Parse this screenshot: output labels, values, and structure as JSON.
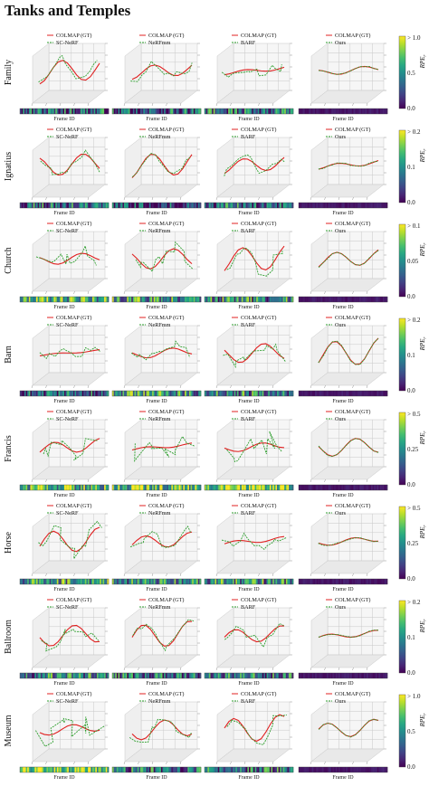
{
  "title": "Tanks and Temples",
  "legend_gt": "COLMAP (GT)",
  "xlabel": "Frame ID",
  "cbar_label": "RPE",
  "cbar_label_sub": "r",
  "methods": [
    "SC-NeRF",
    "NeRFmm",
    "BARF",
    "Ours"
  ],
  "colors": {
    "gt": "#e02020",
    "est": "#2e9e2e",
    "cmap_low": "#440154",
    "cmap_mid": "#21918c",
    "cmap_high": "#fde725"
  },
  "rows": [
    {
      "scene": "Family",
      "cbar_max": "> 1.0",
      "cbar_mid": "0.5",
      "cbar_min": "0.0",
      "rpe": [
        0.35,
        0.3,
        0.4,
        0.05
      ]
    },
    {
      "scene": "Ignatius",
      "cbar_max": "> 0.2",
      "cbar_mid": "0.1",
      "cbar_min": "0.0",
      "rpe": [
        0.35,
        0.2,
        0.35,
        0.05
      ]
    },
    {
      "scene": "Church",
      "cbar_max": "> 0.1",
      "cbar_mid": "0.05",
      "cbar_min": "0.0",
      "rpe": [
        0.6,
        0.55,
        0.45,
        0.05
      ]
    },
    {
      "scene": "Barn",
      "cbar_max": "> 0.2",
      "cbar_mid": "0.1",
      "cbar_min": "0.0",
      "rpe": [
        0.3,
        0.5,
        0.45,
        0.05
      ]
    },
    {
      "scene": "Francis",
      "cbar_max": "> 0.5",
      "cbar_mid": "0.25",
      "cbar_min": "0.0",
      "rpe": [
        0.65,
        0.7,
        0.8,
        0.05
      ]
    },
    {
      "scene": "Horse",
      "cbar_max": "> 0.5",
      "cbar_mid": "0.25",
      "cbar_min": "0.0",
      "rpe": [
        0.55,
        0.45,
        0.5,
        0.05
      ]
    },
    {
      "scene": "Ballroom",
      "cbar_max": "> 0.2",
      "cbar_mid": "0.1",
      "cbar_min": "0.0",
      "rpe": [
        0.45,
        0.35,
        0.4,
        0.05
      ]
    },
    {
      "scene": "Museum",
      "cbar_max": "> 1.0",
      "cbar_mid": "0.5",
      "cbar_min": "0.0",
      "rpe": [
        0.85,
        0.4,
        0.4,
        0.05
      ]
    }
  ]
}
